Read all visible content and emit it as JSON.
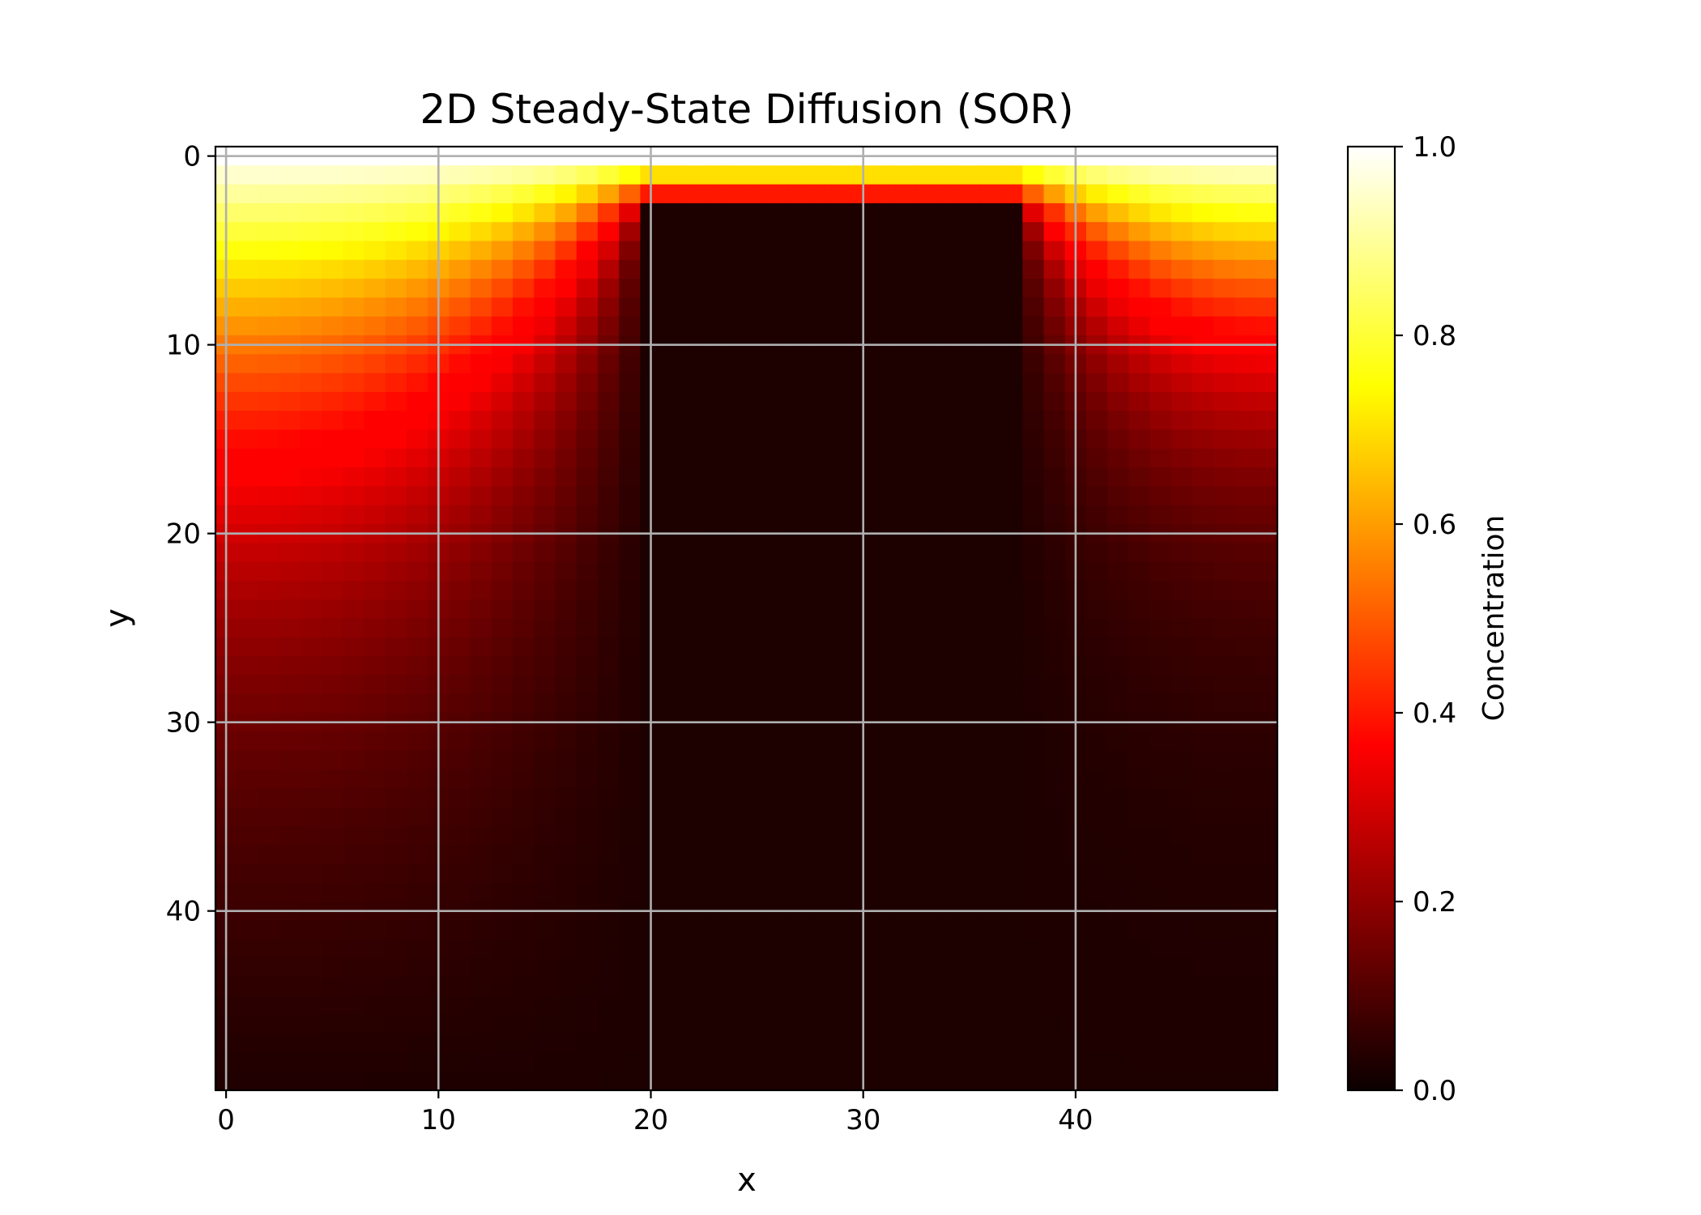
{
  "chart_data": {
    "type": "heatmap",
    "title": "2D Steady-State Diffusion (SOR)",
    "xlabel": "x",
    "ylabel": "y",
    "grid_size": [
      50,
      50
    ],
    "xlim": [
      -0.5,
      49.5
    ],
    "ylim": [
      49.5,
      -0.5
    ],
    "y_axis_inverted": true,
    "x_ticks": [
      0,
      10,
      20,
      30,
      40
    ],
    "y_ticks": [
      0,
      10,
      20,
      30,
      40
    ],
    "x_tick_labels": [
      "0",
      "10",
      "20",
      "30",
      "40"
    ],
    "y_tick_labels": [
      "0",
      "10",
      "20",
      "30",
      "40"
    ],
    "grid": true,
    "colormap": "hot",
    "colorbar": {
      "label": "Concentration",
      "range": [
        0.0,
        1.0
      ],
      "ticks": [
        0.0,
        0.2,
        0.4,
        0.6,
        0.8,
        1.0
      ],
      "tick_labels": [
        "0.0",
        "0.2",
        "0.4",
        "0.6",
        "0.8",
        "1.0"
      ]
    },
    "boundary_conditions": {
      "top_row_value": 1.0,
      "obstacle": {
        "x_range": [
          20,
          37
        ],
        "y_range": [
          3,
          49
        ],
        "value": 0.0
      },
      "source_strip": {
        "x_range": [
          20,
          37
        ],
        "rows": [
          1,
          2
        ],
        "values": [
          0.7,
          0.4
        ]
      }
    }
  }
}
